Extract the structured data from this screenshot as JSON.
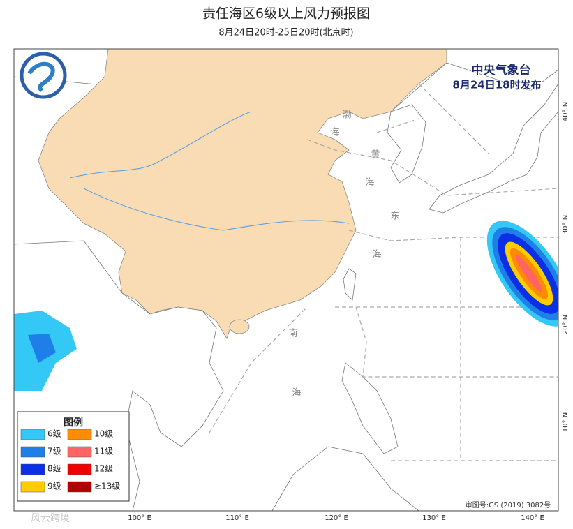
{
  "title": "责任海区6级以上风力预报图",
  "subtitle": "8月24日20时-25日20时(北京时)",
  "agency": "中央气象台",
  "issued": "8月24日18时发布",
  "sea_labels": [
    "渤",
    "海",
    "黄",
    "海",
    "东",
    "海",
    "南",
    "海"
  ],
  "longitude_labels": [
    "100° E",
    "110° E",
    "120° E",
    "130° E",
    "140° E"
  ],
  "latitude_labels": [
    "40° N",
    "30° N",
    "20° N",
    "10° N"
  ],
  "legend": {
    "title": "图例",
    "items": [
      {
        "label": "6级",
        "color": "#33c8f5"
      },
      {
        "label": "7级",
        "color": "#1f7fe8"
      },
      {
        "label": "8级",
        "color": "#0b2fe6"
      },
      {
        "label": "9级",
        "color": "#ffcc00"
      },
      {
        "label": "10级",
        "color": "#ff8c00"
      },
      {
        "label": "11级",
        "color": "#ff6464"
      },
      {
        "label": "12级",
        "color": "#ee0000"
      },
      {
        "label": "≥13级",
        "color": "#b30000"
      }
    ]
  },
  "approval": "审图号:GS (2019) 3082号",
  "watermark": "风云跨境"
}
